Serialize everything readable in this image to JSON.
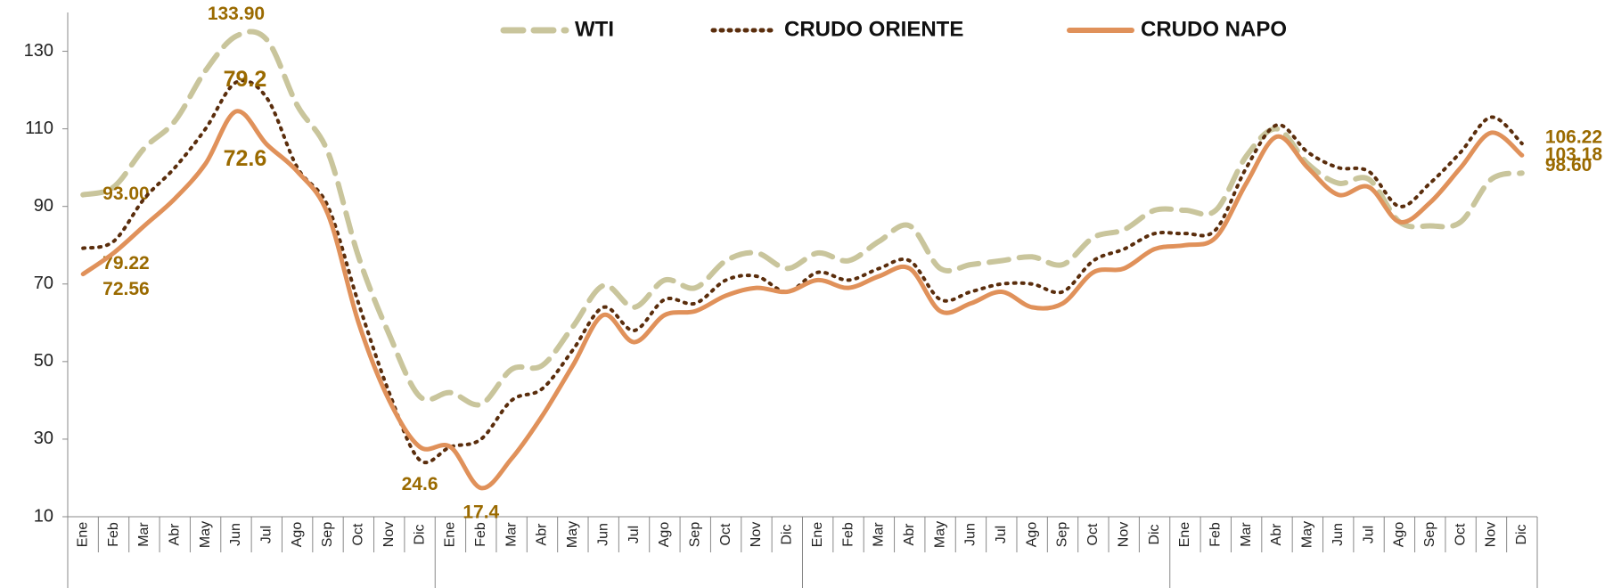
{
  "chart_data": {
    "type": "line",
    "categories": [
      "Ene",
      "Feb",
      "Mar",
      "Abr",
      "May",
      "Jun",
      "Jul",
      "Ago",
      "Sep",
      "Oct",
      "Nov",
      "Dic",
      "Ene",
      "Feb",
      "Mar",
      "Abr",
      "May",
      "Jun",
      "Jul",
      "Ago",
      "Sep",
      "Oct",
      "Nov",
      "Dic",
      "Ene",
      "Feb",
      "Mar",
      "Abr",
      "May",
      "Jun",
      "Jul",
      "Ago",
      "Sep",
      "Oct",
      "Nov",
      "Dic",
      "Ene",
      "Feb",
      "Mar",
      "Abr",
      "May",
      "Jun",
      "Jul",
      "Ago",
      "Sep",
      "Oct",
      "Nov",
      "Dic"
    ],
    "series": [
      {
        "name": "WTI",
        "color": "#c9c59c",
        "style": "dashed",
        "values": [
          93.0,
          95,
          105,
          112,
          125,
          133.9,
          133,
          116,
          104,
          77,
          57,
          41,
          42,
          39,
          48,
          49,
          59,
          69.6,
          64,
          71,
          69,
          76,
          78,
          74,
          78,
          76,
          81,
          85,
          74,
          75,
          76,
          77,
          75,
          82,
          84,
          89,
          89,
          89,
          103,
          110,
          101,
          96,
          97,
          86,
          85,
          86,
          97,
          98.6
        ],
        "value_labels": [
          "93.00",
          null,
          null,
          null,
          null,
          "133.90",
          null,
          null,
          null,
          null,
          null,
          null,
          null,
          null,
          null,
          null,
          null,
          null,
          null,
          null,
          null,
          null,
          null,
          null,
          null,
          null,
          null,
          null,
          null,
          null,
          null,
          null,
          null,
          null,
          null,
          null,
          null,
          null,
          null,
          null,
          null,
          null,
          null,
          null,
          null,
          null,
          null,
          "98.60"
        ]
      },
      {
        "name": "CRUDO ORIENTE",
        "color": "#5a2d0c",
        "style": "dotted",
        "values": [
          79.22,
          81,
          92,
          100,
          110,
          122,
          118,
          100,
          90,
          65,
          42,
          24.6,
          28,
          30,
          40,
          43,
          53,
          64,
          58,
          66,
          65,
          71,
          72,
          68,
          73,
          71,
          74,
          76,
          66,
          68,
          70,
          70,
          68,
          76,
          79,
          83,
          83,
          84,
          100,
          111,
          104,
          100,
          99,
          90,
          96,
          104,
          113,
          106.22
        ],
        "value_labels": [
          "79.22",
          null,
          null,
          null,
          null,
          null,
          null,
          null,
          null,
          null,
          null,
          "24.6",
          null,
          null,
          null,
          null,
          null,
          null,
          null,
          null,
          null,
          null,
          null,
          null,
          null,
          null,
          null,
          null,
          null,
          null,
          null,
          null,
          null,
          null,
          null,
          null,
          null,
          null,
          null,
          null,
          null,
          null,
          null,
          null,
          null,
          null,
          null,
          "106.22"
        ]
      },
      {
        "name": "CRUDO NAPO",
        "color": "#e0915a",
        "style": "solid",
        "values": [
          72.56,
          78,
          85,
          92,
          101,
          114.5,
          106,
          99,
          88,
          60,
          40,
          28,
          28,
          17.4,
          25,
          36,
          49,
          62,
          55,
          62,
          63,
          67,
          69,
          68,
          71,
          69,
          72,
          74,
          63,
          65,
          68,
          64,
          65,
          73,
          74,
          79,
          80,
          82,
          96,
          108,
          100,
          93,
          95,
          86,
          91,
          100,
          109,
          103.18
        ],
        "value_labels": [
          "72.56",
          null,
          null,
          null,
          null,
          null,
          null,
          null,
          null,
          null,
          null,
          null,
          null,
          "17.4",
          null,
          null,
          null,
          null,
          null,
          null,
          null,
          null,
          null,
          null,
          null,
          null,
          null,
          null,
          null,
          null,
          null,
          null,
          null,
          null,
          null,
          null,
          null,
          null,
          null,
          null,
          null,
          null,
          null,
          null,
          null,
          null,
          null,
          "103.18"
        ]
      }
    ],
    "annotations": [
      "79.2",
      "72.6"
    ],
    "ylim": [
      10,
      140
    ],
    "yticks": [
      10,
      30,
      50,
      70,
      90,
      110,
      130
    ],
    "legend": "top",
    "grid": false
  }
}
